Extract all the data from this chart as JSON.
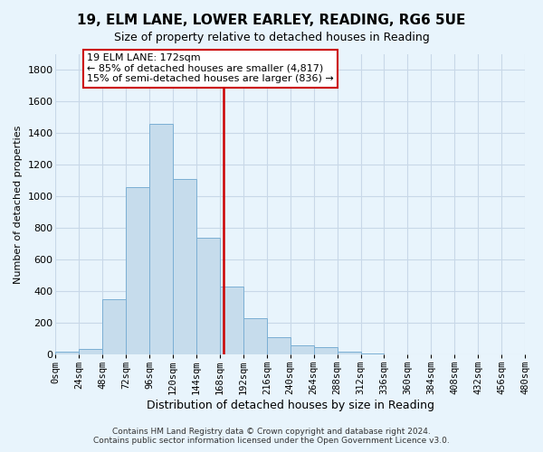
{
  "title": "19, ELM LANE, LOWER EARLEY, READING, RG6 5UE",
  "subtitle": "Size of property relative to detached houses in Reading",
  "xlabel": "Distribution of detached houses by size in Reading",
  "ylabel": "Number of detached properties",
  "footer_line1": "Contains HM Land Registry data © Crown copyright and database right 2024.",
  "footer_line2": "Contains public sector information licensed under the Open Government Licence v3.0.",
  "bin_edges": [
    0,
    24,
    48,
    72,
    96,
    120,
    144,
    168,
    192,
    216,
    240,
    264,
    288,
    312,
    336,
    360,
    384,
    408,
    432,
    456,
    480
  ],
  "bar_heights": [
    15,
    35,
    350,
    1060,
    1460,
    1110,
    740,
    430,
    230,
    110,
    55,
    45,
    20,
    5,
    2,
    1,
    0,
    0,
    0,
    0
  ],
  "bar_color": "#c6dcec",
  "bar_edge_color": "#7bafd4",
  "marker_x": 172,
  "marker_color": "#cc0000",
  "annotation_title": "19 ELM LANE: 172sqm",
  "annotation_line1": "← 85% of detached houses are smaller (4,817)",
  "annotation_line2": "15% of semi-detached houses are larger (836) →",
  "annotation_box_color": "#ffffff",
  "annotation_box_edge_color": "#cc0000",
  "ylim": [
    0,
    1900
  ],
  "xlim": [
    0,
    480
  ],
  "yticks": [
    0,
    200,
    400,
    600,
    800,
    1000,
    1200,
    1400,
    1600,
    1800
  ],
  "xtick_labels": [
    "0sqm",
    "24sqm",
    "48sqm",
    "72sqm",
    "96sqm",
    "120sqm",
    "144sqm",
    "168sqm",
    "192sqm",
    "216sqm",
    "240sqm",
    "264sqm",
    "288sqm",
    "312sqm",
    "336sqm",
    "360sqm",
    "384sqm",
    "408sqm",
    "432sqm",
    "456sqm",
    "480sqm"
  ],
  "xtick_positions": [
    0,
    24,
    48,
    72,
    96,
    120,
    144,
    168,
    192,
    216,
    240,
    264,
    288,
    312,
    336,
    360,
    384,
    408,
    432,
    456,
    480
  ],
  "background_color": "#e8f4fc",
  "grid_color": "#c8d8e8",
  "title_fontsize": 11,
  "subtitle_fontsize": 9,
  "xlabel_fontsize": 9,
  "ylabel_fontsize": 8,
  "tick_fontsize": 7.5,
  "annotation_fontsize": 8,
  "footer_fontsize": 6.5
}
